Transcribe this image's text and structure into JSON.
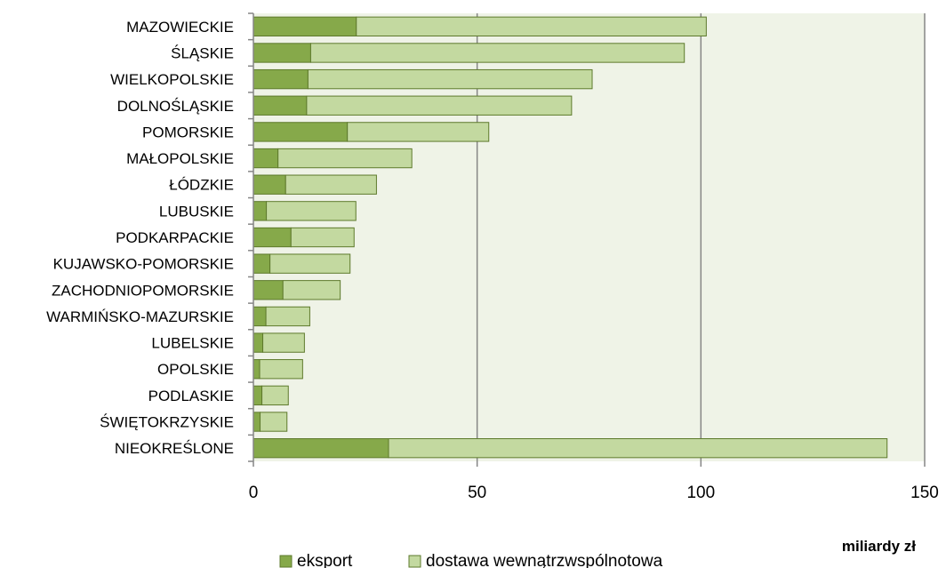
{
  "chart_data": {
    "type": "bar",
    "orientation": "horizontal",
    "stacked": true,
    "categories": [
      "MAZOWIECKIE",
      "ŚLĄSKIE",
      "WIELKOPOLSKIE",
      "DOLNOŚLĄSKIE",
      "POMORSKIE",
      "MAŁOPOLSKIE",
      "ŁÓDZKIE",
      "LUBUSKIE",
      "PODKARPACKIE",
      "KUJAWSKO-POMORSKIE",
      "ZACHODNIOPOMORSKIE",
      "WARMIŃSKO-MAZURSKIE",
      "LUBELSKIE",
      "OPOLSKIE",
      "PODLASKIE",
      "ŚWIĘTOKRZYSKIE",
      "NIEOKREŚLONE"
    ],
    "series": [
      {
        "name": "eksport",
        "color": "#86a94a",
        "values": [
          23.0,
          12.8,
          12.2,
          11.9,
          21.0,
          5.5,
          7.2,
          2.9,
          8.4,
          3.7,
          6.6,
          2.8,
          2.1,
          1.4,
          1.9,
          1.5,
          30.2
        ]
      },
      {
        "name": "dostawa wewnątrzwspólnotowa",
        "color": "#c3d9a0",
        "values": [
          78.2,
          83.5,
          63.5,
          59.2,
          31.6,
          29.9,
          20.3,
          20.0,
          14.1,
          17.9,
          12.8,
          9.8,
          9.3,
          9.6,
          5.9,
          6.0,
          111.4
        ]
      }
    ],
    "xlim": [
      0,
      150
    ],
    "xticks": [
      "0",
      "50",
      "100",
      "150"
    ],
    "xlabel": "miliardy zł",
    "grid": true,
    "legend_position": "bottom"
  }
}
